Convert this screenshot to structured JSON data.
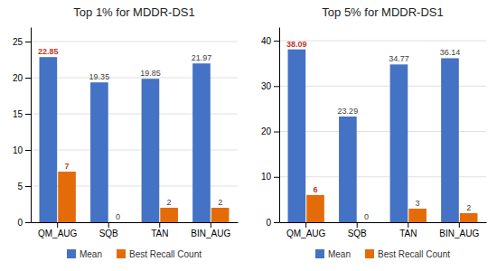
{
  "chart_data": [
    {
      "type": "bar",
      "title": "Top 1% for MDDR-DS1",
      "categories": [
        "QM_AUG",
        "SQB",
        "TAN",
        "BIN_AUG"
      ],
      "series": [
        {
          "name": "Mean",
          "color": "#4472C4",
          "values": [
            22.85,
            19.35,
            19.85,
            21.97
          ]
        },
        {
          "name": "Best Recall Count",
          "color": "#E36C09",
          "values": [
            7,
            0,
            2,
            2
          ]
        }
      ],
      "ylim": [
        0,
        27
      ],
      "yticks": [
        0,
        5,
        10,
        15,
        20,
        25
      ],
      "grid": true,
      "data_labels": true,
      "legend": "bottom"
    },
    {
      "type": "bar",
      "title": "Top 5% for MDDR-DS1",
      "categories": [
        "QM_AUG",
        "SQB",
        "TAN",
        "BIN_AUG"
      ],
      "series": [
        {
          "name": "Mean",
          "color": "#4472C4",
          "values": [
            38.09,
            23.29,
            34.77,
            36.14
          ]
        },
        {
          "name": "Best Recall Count",
          "color": "#E36C09",
          "values": [
            6,
            0,
            3,
            2
          ]
        }
      ],
      "ylim": [
        0,
        43
      ],
      "yticks": [
        0,
        10,
        20,
        30,
        40
      ],
      "grid": true,
      "data_labels": true,
      "legend": "bottom"
    }
  ]
}
